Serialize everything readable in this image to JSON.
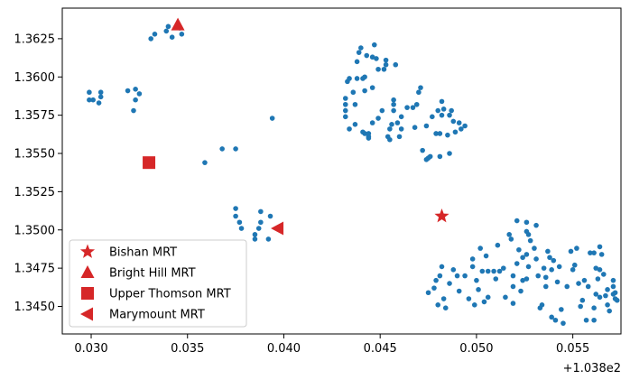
{
  "chart_data": {
    "type": "scatter",
    "title": "",
    "xlabel": "",
    "ylabel": "",
    "x_offset_label": "+1.038e2",
    "xlim": [
      0.0285,
      0.0575
    ],
    "ylim": [
      1.3432,
      1.3645
    ],
    "x_ticks": [
      0.03,
      0.035,
      0.04,
      0.045,
      0.05,
      0.055
    ],
    "x_tick_labels": [
      "0.030",
      "0.035",
      "0.040",
      "0.045",
      "0.050",
      "0.055"
    ],
    "y_ticks": [
      1.345,
      1.3475,
      1.35,
      1.3525,
      1.355,
      1.3575,
      1.36,
      1.3625
    ],
    "y_tick_labels": [
      "1.3450",
      "1.3475",
      "1.3500",
      "1.3525",
      "1.3550",
      "1.3575",
      "1.3600",
      "1.3625"
    ],
    "grid": false,
    "legend_position": "lower-left",
    "point_color": "#1f77b4",
    "points": [
      [
        0.0299,
        1.359
      ],
      [
        0.0305,
        1.359
      ],
      [
        0.0299,
        1.3585
      ],
      [
        0.0301,
        1.3585
      ],
      [
        0.0304,
        1.3583
      ],
      [
        0.0305,
        1.3587
      ],
      [
        0.0319,
        1.3591
      ],
      [
        0.0323,
        1.3592
      ],
      [
        0.0325,
        1.3589
      ],
      [
        0.0323,
        1.3585
      ],
      [
        0.0322,
        1.3578
      ],
      [
        0.0331,
        1.3625
      ],
      [
        0.0333,
        1.3628
      ],
      [
        0.0339,
        1.363
      ],
      [
        0.034,
        1.3633
      ],
      [
        0.0342,
        1.3626
      ],
      [
        0.0346,
        1.3632
      ],
      [
        0.0347,
        1.3628
      ],
      [
        0.0394,
        1.3573
      ],
      [
        0.0359,
        1.3544
      ],
      [
        0.0368,
        1.3553
      ],
      [
        0.0375,
        1.3553
      ],
      [
        0.0375,
        1.3514
      ],
      [
        0.0375,
        1.3509
      ],
      [
        0.0377,
        1.3505
      ],
      [
        0.0378,
        1.3501
      ],
      [
        0.0385,
        1.3497
      ],
      [
        0.0385,
        1.3494
      ],
      [
        0.0387,
        1.3501
      ],
      [
        0.0388,
        1.3505
      ],
      [
        0.0388,
        1.3512
      ],
      [
        0.0392,
        1.3494
      ],
      [
        0.0393,
        1.3509
      ],
      [
        0.0432,
        1.3586
      ],
      [
        0.0432,
        1.3582
      ],
      [
        0.0432,
        1.3578
      ],
      [
        0.0432,
        1.3574
      ],
      [
        0.0433,
        1.3597
      ],
      [
        0.0434,
        1.3599
      ],
      [
        0.0434,
        1.3566
      ],
      [
        0.0436,
        1.359
      ],
      [
        0.0437,
        1.3582
      ],
      [
        0.0437,
        1.3569
      ],
      [
        0.0438,
        1.3599
      ],
      [
        0.0438,
        1.361
      ],
      [
        0.0439,
        1.3616
      ],
      [
        0.044,
        1.3619
      ],
      [
        0.0441,
        1.3599
      ],
      [
        0.0442,
        1.36
      ],
      [
        0.0442,
        1.3591
      ],
      [
        0.0441,
        1.3564
      ],
      [
        0.0442,
        1.3563
      ],
      [
        0.0443,
        1.3614
      ],
      [
        0.0444,
        1.3563
      ],
      [
        0.0444,
        1.3561
      ],
      [
        0.0444,
        1.356
      ],
      [
        0.0446,
        1.3613
      ],
      [
        0.0447,
        1.3621
      ],
      [
        0.0446,
        1.3593
      ],
      [
        0.0446,
        1.357
      ],
      [
        0.0448,
        1.3612
      ],
      [
        0.0449,
        1.3605
      ],
      [
        0.0449,
        1.3573
      ],
      [
        0.0451,
        1.3578
      ],
      [
        0.0452,
        1.3605
      ],
      [
        0.0453,
        1.3611
      ],
      [
        0.0453,
        1.3608
      ],
      [
        0.0454,
        1.3561
      ],
      [
        0.0455,
        1.3566
      ],
      [
        0.0455,
        1.3559
      ],
      [
        0.0456,
        1.3569
      ],
      [
        0.0457,
        1.3585
      ],
      [
        0.0457,
        1.3582
      ],
      [
        0.0457,
        1.3578
      ],
      [
        0.0458,
        1.3608
      ],
      [
        0.0459,
        1.357
      ],
      [
        0.046,
        1.3561
      ],
      [
        0.0461,
        1.3566
      ],
      [
        0.0461,
        1.3574
      ],
      [
        0.0464,
        1.358
      ],
      [
        0.0467,
        1.358
      ],
      [
        0.0468,
        1.3567
      ],
      [
        0.0469,
        1.3582
      ],
      [
        0.047,
        1.359
      ],
      [
        0.0471,
        1.3593
      ],
      [
        0.0472,
        1.3552
      ],
      [
        0.0474,
        1.3568
      ],
      [
        0.0474,
        1.3546
      ],
      [
        0.0475,
        1.3547
      ],
      [
        0.0476,
        1.3548
      ],
      [
        0.0477,
        1.3574
      ],
      [
        0.0479,
        1.3563
      ],
      [
        0.048,
        1.3578
      ],
      [
        0.0481,
        1.3548
      ],
      [
        0.0481,
        1.3563
      ],
      [
        0.0482,
        1.3584
      ],
      [
        0.0482,
        1.3575
      ],
      [
        0.0483,
        1.3579
      ],
      [
        0.0485,
        1.3562
      ],
      [
        0.0486,
        1.355
      ],
      [
        0.0486,
        1.3575
      ],
      [
        0.0487,
        1.3578
      ],
      [
        0.0488,
        1.3571
      ],
      [
        0.0489,
        1.3564
      ],
      [
        0.0491,
        1.357
      ],
      [
        0.0492,
        1.3566
      ],
      [
        0.0494,
        1.3568
      ],
      [
        0.0475,
        1.3459
      ],
      [
        0.0478,
        1.3462
      ],
      [
        0.0479,
        1.3467
      ],
      [
        0.048,
        1.3451
      ],
      [
        0.0481,
        1.347
      ],
      [
        0.0482,
        1.3476
      ],
      [
        0.0483,
        1.3455
      ],
      [
        0.0484,
        1.3449
      ],
      [
        0.0486,
        1.3465
      ],
      [
        0.0488,
        1.3474
      ],
      [
        0.049,
        1.347
      ],
      [
        0.0491,
        1.346
      ],
      [
        0.0494,
        1.347
      ],
      [
        0.0496,
        1.3455
      ],
      [
        0.0498,
        1.3481
      ],
      [
        0.0498,
        1.3476
      ],
      [
        0.0499,
        1.3451
      ],
      [
        0.05,
        1.3467
      ],
      [
        0.0501,
        1.3461
      ],
      [
        0.0502,
        1.3488
      ],
      [
        0.0503,
        1.3473
      ],
      [
        0.0504,
        1.3453
      ],
      [
        0.0505,
        1.3483
      ],
      [
        0.0506,
        1.3473
      ],
      [
        0.0506,
        1.3456
      ],
      [
        0.0509,
        1.3473
      ],
      [
        0.051,
        1.3468
      ],
      [
        0.0511,
        1.349
      ],
      [
        0.0512,
        1.3473
      ],
      [
        0.0514,
        1.3475
      ],
      [
        0.0515,
        1.3456
      ],
      [
        0.0517,
        1.3497
      ],
      [
        0.0518,
        1.3494
      ],
      [
        0.0519,
        1.347
      ],
      [
        0.0519,
        1.3463
      ],
      [
        0.0519,
        1.3452
      ],
      [
        0.0521,
        1.3478
      ],
      [
        0.0521,
        1.3506
      ],
      [
        0.0522,
        1.3487
      ],
      [
        0.0523,
        1.346
      ],
      [
        0.0524,
        1.3482
      ],
      [
        0.0524,
        1.3467
      ],
      [
        0.0526,
        1.3505
      ],
      [
        0.0526,
        1.3499
      ],
      [
        0.0526,
        1.3484
      ],
      [
        0.0526,
        1.3468
      ],
      [
        0.0527,
        1.3497
      ],
      [
        0.0527,
        1.3476
      ],
      [
        0.0528,
        1.3493
      ],
      [
        0.053,
        1.3488
      ],
      [
        0.0531,
        1.3503
      ],
      [
        0.0531,
        1.3481
      ],
      [
        0.0532,
        1.347
      ],
      [
        0.0533,
        1.3449
      ],
      [
        0.0534,
        1.3451
      ],
      [
        0.0535,
        1.3475
      ],
      [
        0.0536,
        1.3469
      ],
      [
        0.0536,
        1.3463
      ],
      [
        0.0537,
        1.3486
      ],
      [
        0.0538,
        1.3482
      ],
      [
        0.0539,
        1.3474
      ],
      [
        0.0539,
        1.3443
      ],
      [
        0.054,
        1.348
      ],
      [
        0.0541,
        1.3441
      ],
      [
        0.0542,
        1.3466
      ],
      [
        0.0543,
        1.3476
      ],
      [
        0.0544,
        1.3448
      ],
      [
        0.0545,
        1.3439
      ],
      [
        0.0547,
        1.3463
      ],
      [
        0.0549,
        1.3486
      ],
      [
        0.055,
        1.3474
      ],
      [
        0.0551,
        1.3477
      ],
      [
        0.0552,
        1.3488
      ],
      [
        0.0553,
        1.3465
      ],
      [
        0.0554,
        1.345
      ],
      [
        0.0555,
        1.3454
      ],
      [
        0.0556,
        1.3467
      ],
      [
        0.0557,
        1.3441
      ],
      [
        0.0558,
        1.3463
      ],
      [
        0.0559,
        1.3485
      ],
      [
        0.0561,
        1.3485
      ],
      [
        0.0561,
        1.3441
      ],
      [
        0.0561,
        1.3449
      ],
      [
        0.0562,
        1.3475
      ],
      [
        0.0562,
        1.3458
      ],
      [
        0.0563,
        1.3468
      ],
      [
        0.0564,
        1.3456
      ],
      [
        0.0564,
        1.3474
      ],
      [
        0.0564,
        1.3489
      ],
      [
        0.0565,
        1.3484
      ],
      [
        0.0566,
        1.3471
      ],
      [
        0.0567,
        1.3457
      ],
      [
        0.0568,
        1.3461
      ],
      [
        0.0568,
        1.3451
      ],
      [
        0.0569,
        1.3447
      ],
      [
        0.0571,
        1.3458
      ],
      [
        0.0571,
        1.3463
      ],
      [
        0.0571,
        1.3467
      ],
      [
        0.0572,
        1.3455
      ],
      [
        0.0572,
        1.3459
      ],
      [
        0.0573,
        1.3454
      ]
    ],
    "markers": [
      {
        "name": "Bishan MRT",
        "x": 0.0482,
        "y": 1.3509,
        "shape": "star",
        "color": "#d62728"
      },
      {
        "name": "Bright Hill MRT",
        "x": 0.0345,
        "y": 1.3634,
        "shape": "triangle-up",
        "color": "#d62728"
      },
      {
        "name": "Upper Thomson MRT",
        "x": 0.033,
        "y": 1.3544,
        "shape": "square",
        "color": "#d62728"
      },
      {
        "name": "Marymount MRT",
        "x": 0.0397,
        "y": 1.3501,
        "shape": "triangle-left",
        "color": "#d62728"
      }
    ]
  }
}
